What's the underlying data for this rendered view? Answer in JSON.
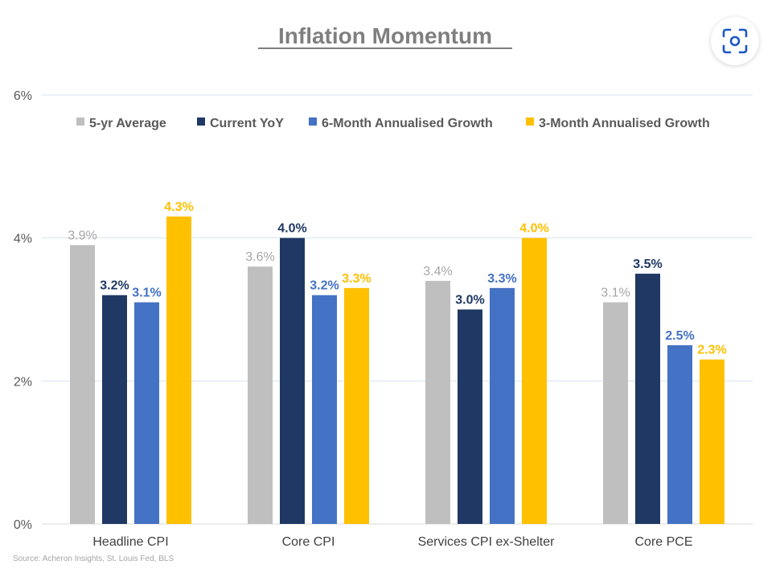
{
  "chart_data": {
    "type": "bar",
    "title": "Inflation Momentum",
    "source": "Source: Acheron Insights, St. Louis Fed, BLS",
    "categories": [
      "Headline CPI",
      "Core CPI",
      "Services CPI ex-Shelter",
      "Core PCE"
    ],
    "series": [
      {
        "name": "5-yr Average",
        "color": "#bfbfbf",
        "values": [
          3.9,
          3.6,
          3.4,
          3.1
        ],
        "labels": [
          "3.9%",
          "3.6%",
          "3.4%",
          "3.1%"
        ]
      },
      {
        "name": "Current YoY",
        "color": "#1f3864",
        "values": [
          3.2,
          4.0,
          3.0,
          3.5
        ],
        "labels": [
          "3.2%",
          "4.0%",
          "3.0%",
          "3.5%"
        ]
      },
      {
        "name": "6-Month Annualised Growth",
        "color": "#4472c4",
        "values": [
          3.1,
          3.2,
          3.3,
          2.5
        ],
        "labels": [
          "3.1%",
          "3.2%",
          "3.3%",
          "2.5%"
        ]
      },
      {
        "name": "3-Month Annualised Growth",
        "color": "#ffc000",
        "values": [
          4.3,
          3.3,
          4.0,
          2.3
        ],
        "labels": [
          "4.3%",
          "3.3%",
          "4.0%",
          "2.3%"
        ]
      }
    ],
    "yticks": [
      0,
      2,
      4,
      6
    ],
    "ytick_labels": [
      "0%",
      "2%",
      "4%",
      "6%"
    ],
    "ylim": [
      0,
      6
    ],
    "grid": true,
    "legend_position": "top"
  },
  "icons": {
    "lens": "lens-search-icon"
  }
}
